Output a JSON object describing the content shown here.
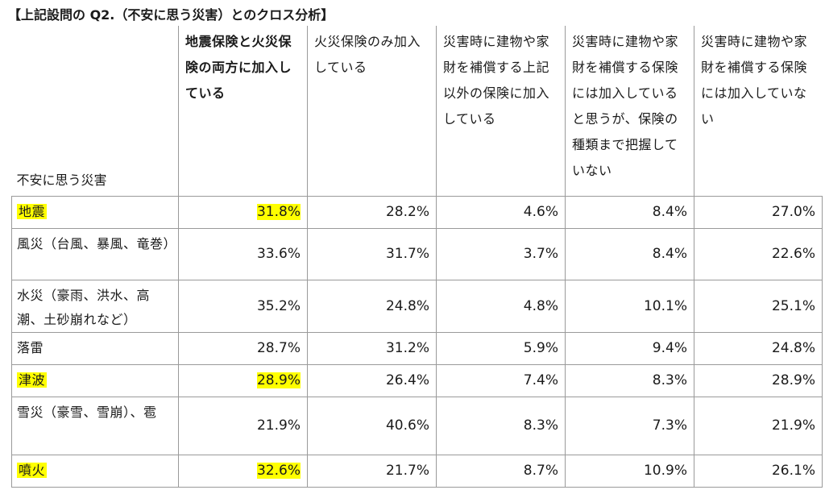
{
  "title": "【上記設問の Q2.（不安に思う災害）とのクロス分析】",
  "row_header": "不安に思う災害",
  "columns": [
    "地震保険と火災保険の両方に加入している",
    "火災保険のみ加入している",
    "災害時に建物や家財を補償する上記以外の保険に加入している",
    "災害時に建物や家財を補償する保険には加入していると思うが、保険の種類まで把握していない",
    "災害時に建物や家財を補償する保険には加入していない"
  ],
  "highlight_color": "#ffff00",
  "rows": [
    {
      "label": "地震",
      "values": [
        "31.8%",
        "28.2%",
        "4.6%",
        "8.4%",
        "27.0%"
      ],
      "highlight": true
    },
    {
      "label": "風災（台風、暴風、竜巻）",
      "values": [
        "33.6%",
        "31.7%",
        "3.7%",
        "8.4%",
        "22.6%"
      ],
      "highlight": false
    },
    {
      "label": "水災（豪雨、洪水、高潮、土砂崩れなど）",
      "values": [
        "35.2%",
        "24.8%",
        "4.8%",
        "10.1%",
        "25.1%"
      ],
      "highlight": false
    },
    {
      "label": "落雷",
      "values": [
        "28.7%",
        "31.2%",
        "5.9%",
        "9.4%",
        "24.8%"
      ],
      "highlight": false
    },
    {
      "label": "津波",
      "values": [
        "28.9%",
        "26.4%",
        "7.4%",
        "8.3%",
        "28.9%"
      ],
      "highlight": true
    },
    {
      "label": "雪災（豪雪、雪崩）、雹",
      "values": [
        "21.9%",
        "40.6%",
        "8.3%",
        "7.3%",
        "21.9%"
      ],
      "highlight": false
    },
    {
      "label": "噴火",
      "values": [
        "32.6%",
        "21.7%",
        "8.7%",
        "10.9%",
        "26.1%"
      ],
      "highlight": true
    }
  ]
}
